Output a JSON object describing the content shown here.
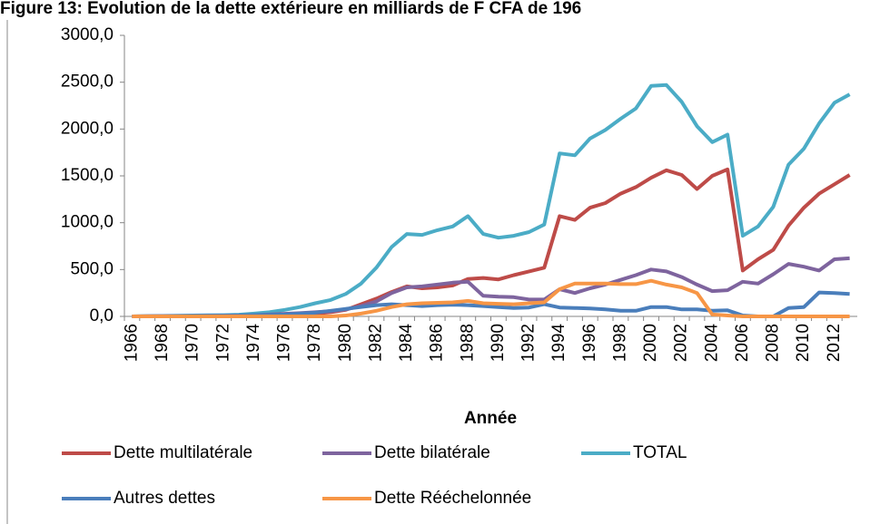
{
  "chart_data": {
    "type": "line",
    "title": "Figure 13: Evolution de la dette extérieure en milliards de F CFA de 196",
    "x_label": "Année",
    "categories": [
      "1966",
      null,
      "1968",
      null,
      "1970",
      null,
      "1972",
      null,
      "1974",
      null,
      "1976",
      null,
      "1978",
      null,
      "1980",
      null,
      "1982",
      null,
      "1984",
      null,
      "1986",
      null,
      "1988",
      null,
      "1990",
      null,
      "1992",
      null,
      "1994",
      null,
      "1996",
      null,
      "1998",
      null,
      "2000",
      null,
      "2002",
      null,
      "2004",
      null,
      "2006",
      null,
      "2008",
      null,
      "2010",
      null,
      "2012",
      null
    ],
    "ylim": [
      0,
      3000
    ],
    "yticks": [
      {
        "value": 0,
        "label": "0,0"
      },
      {
        "value": 500,
        "label": "500,0"
      },
      {
        "value": 1000,
        "label": "1000,0"
      },
      {
        "value": 1500,
        "label": "1500,0"
      },
      {
        "value": 2000,
        "label": "2000,0"
      },
      {
        "value": 2500,
        "label": "2500,0"
      },
      {
        "value": 3000,
        "label": "3000,0"
      }
    ],
    "grid": false,
    "legend": "bottom",
    "series": [
      {
        "name": "TOTAL",
        "color": "#4bacc6",
        "values": [
          0,
          2,
          5,
          8,
          10,
          12,
          14,
          18,
          30,
          45,
          70,
          100,
          140,
          175,
          240,
          350,
          520,
          740,
          880,
          870,
          920,
          960,
          1070,
          880,
          840,
          860,
          900,
          980,
          1740,
          1720,
          1900,
          1990,
          2110,
          2220,
          2460,
          2470,
          2290,
          2030,
          1860,
          1940,
          860,
          960,
          1170,
          1620,
          1790,
          2060,
          2280,
          2370
        ]
      },
      {
        "name": "Dette multilatérale",
        "color": "#be4b48",
        "values": [
          0,
          1,
          2,
          3,
          4,
          5,
          6,
          8,
          10,
          12,
          15,
          20,
          30,
          45,
          70,
          130,
          190,
          260,
          320,
          300,
          310,
          330,
          400,
          410,
          395,
          440,
          480,
          520,
          1070,
          1030,
          1160,
          1210,
          1310,
          1380,
          1480,
          1560,
          1510,
          1360,
          1500,
          1570,
          490,
          610,
          710,
          970,
          1160,
          1310,
          1410,
          1510
        ]
      },
      {
        "name": "Dette bilatérale",
        "color": "#7e649e",
        "values": [
          0,
          1,
          3,
          5,
          6,
          7,
          8,
          10,
          14,
          20,
          28,
          35,
          45,
          55,
          75,
          110,
          160,
          250,
          310,
          320,
          340,
          360,
          370,
          220,
          210,
          205,
          180,
          180,
          290,
          250,
          300,
          340,
          390,
          440,
          500,
          480,
          420,
          340,
          270,
          280,
          370,
          350,
          450,
          560,
          530,
          490,
          610,
          620
        ]
      },
      {
        "name": "Autres dettes",
        "color": "#4a7ebb",
        "values": [
          0,
          1,
          2,
          4,
          5,
          6,
          7,
          8,
          12,
          15,
          20,
          30,
          40,
          60,
          80,
          100,
          120,
          130,
          120,
          110,
          120,
          125,
          120,
          110,
          100,
          90,
          95,
          130,
          95,
          90,
          85,
          75,
          60,
          60,
          100,
          100,
          75,
          75,
          60,
          65,
          10,
          0,
          0,
          90,
          100,
          255,
          250,
          240
        ]
      },
      {
        "name": "Dette Rééchelonnée",
        "color": "#f79646",
        "values": [
          0,
          0,
          0,
          0,
          0,
          0,
          0,
          0,
          0,
          0,
          0,
          0,
          0,
          0,
          10,
          30,
          60,
          100,
          130,
          140,
          145,
          150,
          165,
          140,
          135,
          130,
          140,
          150,
          290,
          350,
          350,
          350,
          345,
          345,
          380,
          340,
          310,
          250,
          20,
          10,
          0,
          0,
          0,
          0,
          0,
          0,
          0,
          0
        ]
      }
    ]
  }
}
